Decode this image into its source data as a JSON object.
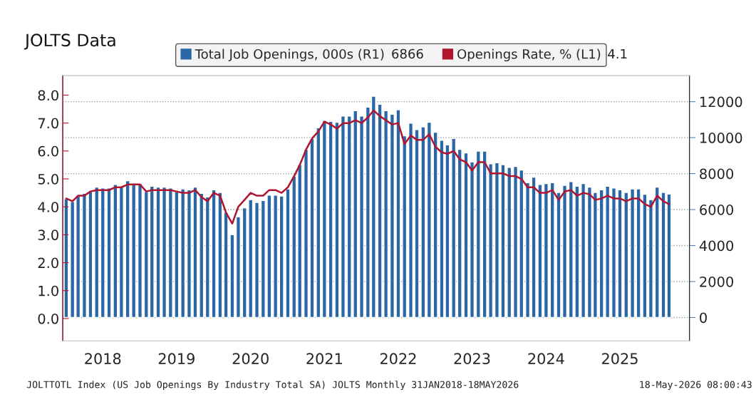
{
  "chart_data": {
    "type": "bar",
    "title": "JOLTS Data",
    "x": [
      "2018-01",
      "2018-02",
      "2018-03",
      "2018-04",
      "2018-05",
      "2018-06",
      "2018-07",
      "2018-08",
      "2018-09",
      "2018-10",
      "2018-11",
      "2018-12",
      "2019-01",
      "2019-02",
      "2019-03",
      "2019-04",
      "2019-05",
      "2019-06",
      "2019-07",
      "2019-08",
      "2019-09",
      "2019-10",
      "2019-11",
      "2019-12",
      "2020-01",
      "2020-02",
      "2020-03",
      "2020-04",
      "2020-05",
      "2020-06",
      "2020-07",
      "2020-08",
      "2020-09",
      "2020-10",
      "2020-11",
      "2020-12",
      "2021-01",
      "2021-02",
      "2021-03",
      "2021-04",
      "2021-05",
      "2021-06",
      "2021-07",
      "2021-08",
      "2021-09",
      "2021-10",
      "2021-11",
      "2021-12",
      "2022-01",
      "2022-02",
      "2022-03",
      "2022-04",
      "2022-05",
      "2022-06",
      "2022-07",
      "2022-08",
      "2022-09",
      "2022-10",
      "2022-11",
      "2022-12",
      "2023-01",
      "2023-02",
      "2023-03",
      "2023-04",
      "2023-05",
      "2023-06",
      "2023-07",
      "2023-08",
      "2023-09",
      "2023-10",
      "2023-11",
      "2023-12",
      "2024-01",
      "2024-02",
      "2024-03",
      "2024-04",
      "2024-05",
      "2024-06",
      "2024-07",
      "2024-08",
      "2024-09",
      "2024-10",
      "2024-11",
      "2024-12",
      "2025-01",
      "2025-02",
      "2025-03",
      "2025-04",
      "2025-05",
      "2025-06",
      "2025-07",
      "2025-08",
      "2025-09",
      "2025-10",
      "2025-11",
      "2025-12",
      "2026-01",
      "2026-02",
      "2026-03"
    ],
    "series": [
      {
        "name": "Total Job Openings, 000s (R1)",
        "axis": "y2",
        "color": "#2b67a6",
        "values": [
          6600,
          6450,
          6800,
          6900,
          7000,
          7250,
          7200,
          7200,
          7400,
          7250,
          7600,
          7450,
          7450,
          7000,
          7300,
          7250,
          7250,
          7200,
          7000,
          7150,
          7100,
          7250,
          6900,
          6700,
          7100,
          6950,
          5850,
          4600,
          5600,
          6100,
          6550,
          6400,
          6500,
          6800,
          6800,
          6750,
          7150,
          7850,
          8500,
          9350,
          9950,
          10550,
          10950,
          10900,
          10850,
          11200,
          11200,
          11500,
          11200,
          11700,
          12300,
          11850,
          11500,
          11300,
          11550,
          10100,
          10800,
          10450,
          10600,
          10850,
          10300,
          9850,
          9600,
          9950,
          9350,
          9150,
          8650,
          9250,
          9250,
          8550,
          8600,
          8500,
          8350,
          8400,
          8200,
          7500,
          7800,
          7400,
          7450,
          7500,
          6950,
          7350,
          7550,
          7300,
          7450,
          7250,
          6950,
          7100,
          7300,
          7200,
          7100,
          6950,
          7150,
          7150,
          6850,
          6550,
          7250,
          6950,
          6866
        ]
      },
      {
        "name": "Openings Rate, % (L1)",
        "type": "line",
        "color": "#b0142f",
        "values": [
          4.3,
          4.2,
          4.4,
          4.4,
          4.55,
          4.6,
          4.6,
          4.6,
          4.7,
          4.7,
          4.8,
          4.8,
          4.8,
          4.55,
          4.6,
          4.6,
          4.6,
          4.6,
          4.55,
          4.5,
          4.5,
          4.6,
          4.35,
          4.2,
          4.5,
          4.4,
          3.8,
          3.4,
          4.0,
          4.25,
          4.5,
          4.4,
          4.4,
          4.6,
          4.6,
          4.5,
          4.7,
          5.1,
          5.5,
          6.05,
          6.45,
          6.7,
          7.05,
          6.95,
          6.8,
          7.0,
          7.0,
          7.1,
          7.0,
          7.2,
          7.45,
          7.25,
          7.1,
          6.95,
          7.0,
          6.25,
          6.55,
          6.4,
          6.4,
          6.6,
          6.15,
          5.95,
          5.9,
          6.0,
          5.7,
          5.6,
          5.3,
          5.6,
          5.6,
          5.2,
          5.2,
          5.2,
          5.1,
          5.1,
          5.0,
          4.7,
          4.7,
          4.5,
          4.5,
          4.6,
          4.25,
          4.55,
          4.6,
          4.4,
          4.5,
          4.45,
          4.25,
          4.3,
          4.4,
          4.3,
          4.3,
          4.2,
          4.3,
          4.3,
          4.1,
          4.0,
          4.4,
          4.2,
          4.1
        ]
      }
    ],
    "ylim": [
      -0.8,
      8.7
    ],
    "yticks": [
      {
        "value": 0,
        "label": "0.0"
      },
      {
        "value": 1,
        "label": "1.0"
      },
      {
        "value": 2,
        "label": "2.0"
      },
      {
        "value": 3,
        "label": "3.0"
      },
      {
        "value": 4,
        "label": "4.0"
      },
      {
        "value": 5,
        "label": "5.0"
      },
      {
        "value": 6,
        "label": "6.0"
      },
      {
        "value": 7,
        "label": "7.0"
      },
      {
        "value": 8,
        "label": "8.0"
      }
    ],
    "y2lim": [
      -1300,
      13450
    ],
    "y2ticks": [
      0,
      2000,
      4000,
      6000,
      8000,
      10000,
      12000
    ],
    "xlim": [
      "2017-12-15",
      "2026-06-10"
    ],
    "xticks": [
      {
        "value": "2018-07",
        "label": "2018"
      },
      {
        "value": "2019-07",
        "label": "2019"
      },
      {
        "value": "2020-07",
        "label": "2020"
      },
      {
        "value": "2021-07",
        "label": "2021"
      },
      {
        "value": "2022-07",
        "label": "2022"
      },
      {
        "value": "2023-07",
        "label": "2023"
      },
      {
        "value": "2024-07",
        "label": "2024"
      },
      {
        "value": "2025-07",
        "label": "2025"
      }
    ],
    "grid": "y",
    "legend": "top left",
    "annotations": [
      "6866",
      "4.1",
      "JOLTTOTL Index (US Job Openings By Industry Total SA) JOLTS Monthly 31JAN2018-18MAY2026",
      "18-May-2026 08:00:43"
    ]
  }
}
